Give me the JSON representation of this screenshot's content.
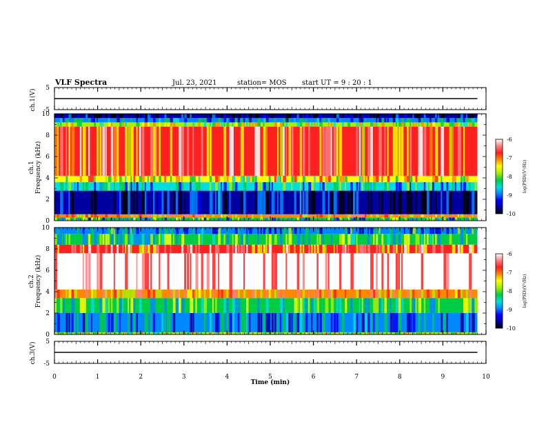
{
  "header": {
    "title": "VLF Spectra",
    "date": "Jul. 23, 2021",
    "station": "station= MOS",
    "start": "start UT =  9 : 20 : 1"
  },
  "colors": {
    "spectrum_scale": [
      "#000000",
      "#0000a0",
      "#0000ff",
      "#0088ff",
      "#00dddd",
      "#00cc44",
      "#aaee00",
      "#ffff00",
      "#ff8800",
      "#ff2020",
      "#ff8080",
      "#ffffff"
    ]
  },
  "chart_data": [
    {
      "id": "ch1-waveform",
      "type": "line",
      "ylabel": "ch.1(V)",
      "yticks": [
        "5",
        "-5"
      ],
      "ylim": [
        -5,
        5
      ],
      "xlim": [
        0,
        10
      ],
      "series": [
        {
          "x": [
            0,
            9.8
          ],
          "y": [
            0,
            0
          ]
        }
      ]
    },
    {
      "id": "ch1-spectrogram",
      "type": "heatmap",
      "ylabel_line1": "ch.1",
      "ylabel_line2": "Frequency (kHz)",
      "yticks": [
        "0",
        "2",
        "4",
        "6",
        "8",
        "10"
      ],
      "ylim": [
        0,
        10
      ],
      "xlim": [
        0,
        9.8
      ],
      "colorbar": {
        "label": "log(PSD)(V²/Hz)",
        "ticks": [
          "-6",
          "-7",
          "-8",
          "-9",
          "-10"
        ],
        "range": [
          -10,
          -6
        ]
      },
      "frequency_bands": [
        {
          "f_low": 0.0,
          "f_high": 0.3,
          "log_psd": -8.3
        },
        {
          "f_low": 0.3,
          "f_high": 0.6,
          "log_psd": -7.2
        },
        {
          "f_low": 0.6,
          "f_high": 2.8,
          "log_psd": -9.4
        },
        {
          "f_low": 2.8,
          "f_high": 3.6,
          "log_psd": -8.6
        },
        {
          "f_low": 3.6,
          "f_high": 4.2,
          "log_psd": -7.6
        },
        {
          "f_low": 4.2,
          "f_high": 8.8,
          "log_psd": -6.9
        },
        {
          "f_low": 8.8,
          "f_high": 9.2,
          "log_psd": -7.8
        },
        {
          "f_low": 9.2,
          "f_high": 9.6,
          "log_psd": -8.8
        },
        {
          "f_low": 9.6,
          "f_high": 10.0,
          "log_psd": -9.6
        }
      ]
    },
    {
      "id": "ch2-spectrogram",
      "type": "heatmap",
      "ylabel_line1": "ch.2",
      "ylabel_line2": "Frequency (kHz)",
      "yticks": [
        "0",
        "2",
        "4",
        "6",
        "8",
        "10"
      ],
      "ylim": [
        0,
        10
      ],
      "xlim": [
        0,
        9.8
      ],
      "colorbar": {
        "label": "log(PSD)(V²/Hz)",
        "ticks": [
          "-6",
          "-7",
          "-8",
          "-9",
          "-10"
        ],
        "range": [
          -10,
          -6
        ]
      },
      "frequency_bands": [
        {
          "f_low": 0.0,
          "f_high": 0.2,
          "log_psd": -7.8
        },
        {
          "f_low": 0.2,
          "f_high": 2.0,
          "log_psd": -8.8
        },
        {
          "f_low": 2.0,
          "f_high": 3.4,
          "log_psd": -8.2
        },
        {
          "f_low": 3.4,
          "f_high": 4.2,
          "log_psd": -7.2
        },
        {
          "f_low": 4.2,
          "f_high": 7.6,
          "log_psd": -6.2
        },
        {
          "f_low": 7.6,
          "f_high": 8.4,
          "log_psd": -7.0
        },
        {
          "f_low": 8.4,
          "f_high": 9.4,
          "log_psd": -8.2
        },
        {
          "f_low": 9.4,
          "f_high": 10.0,
          "log_psd": -8.7
        }
      ]
    },
    {
      "id": "ch3-waveform",
      "type": "line",
      "ylabel": "ch.3(V)",
      "yticks": [
        "5",
        "-5"
      ],
      "ylim": [
        -5,
        5
      ],
      "xlim": [
        0,
        10
      ],
      "series": [
        {
          "x": [
            0,
            9.8
          ],
          "y": [
            0,
            0
          ]
        }
      ]
    }
  ],
  "xaxis": {
    "label": "Time (min)",
    "ticks": [
      "0",
      "1",
      "2",
      "3",
      "4",
      "5",
      "6",
      "7",
      "8",
      "9",
      "10"
    ],
    "range": [
      0,
      10
    ]
  }
}
